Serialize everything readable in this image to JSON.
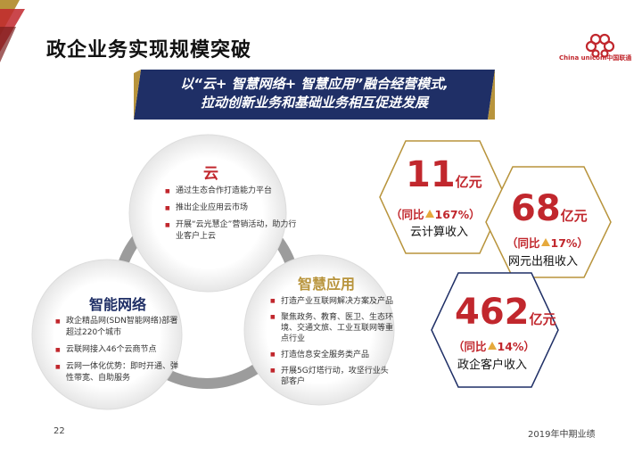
{
  "header": {
    "title": "政企业务实现规模突破",
    "logo_text": "China unicom中国联通"
  },
  "banner": {
    "line1": "以“云+ 智慧网络+ 智慧应用”融合经营模式,",
    "line2": "拉动创新业务和基础业务相互促进发展"
  },
  "cloud": {
    "title": "云",
    "items": [
      "通过生态合作打造能力平台",
      "推出企业应用云市场",
      "开展“云光慧企”营销活动，助力行业客户上云"
    ]
  },
  "network": {
    "title": "智能网络",
    "items": [
      "政企精品网(SDN智能网络)部署超过220个城市",
      "云联网接入46个云商节点",
      "云网一体化优势：即时开通、弹性带宽、自助服务"
    ]
  },
  "apps": {
    "title": "智慧应用",
    "items": [
      "打造产业互联网解决方案及产品",
      "聚焦政务、教育、医卫、生态环境、交通文旅、工业互联网等重点行业",
      "打造信息安全服务类产品",
      "开展5G灯塔行动，攻坚行业头部客户"
    ]
  },
  "metrics": [
    {
      "value": "11",
      "unit": "亿元",
      "yoy_prefix": "（同比",
      "yoy_value": "167%）",
      "label": "云计算收入"
    },
    {
      "value": "68",
      "unit": "亿元",
      "yoy_prefix": "（同比",
      "yoy_value": "17%）",
      "label": "网元出租收入"
    },
    {
      "value": "462",
      "unit": "亿元",
      "yoy_prefix": "（同比",
      "yoy_value": "14%）",
      "label": "政企客户收入"
    }
  ],
  "footer": {
    "page": "22",
    "right": "2019年中期业绩"
  },
  "colors": {
    "accent": "#c1272d",
    "navy": "#1f2f66",
    "gold": "#b8943c",
    "arrow": "#e6a93c"
  }
}
